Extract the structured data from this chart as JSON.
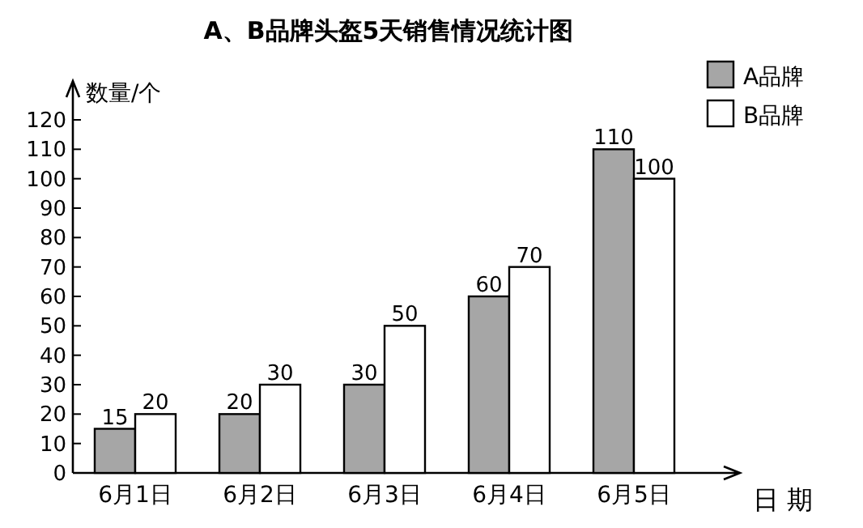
{
  "chart_data": {
    "type": "bar",
    "title": "A、B品牌头盔5天销售情况统计图",
    "xlabel": "日 期",
    "ylabel": "数量/个",
    "categories": [
      "6月1日",
      "6月2日",
      "6月3日",
      "6月4日",
      "6月5日"
    ],
    "series": [
      {
        "name": "A品牌",
        "color": "#a6a6a6",
        "values": [
          15,
          20,
          30,
          60,
          110
        ]
      },
      {
        "name": "B品牌",
        "color": "#ffffff",
        "values": [
          20,
          30,
          50,
          70,
          100
        ]
      }
    ],
    "ylim": [
      0,
      120
    ],
    "yticks": [
      0,
      10,
      20,
      30,
      40,
      50,
      60,
      70,
      80,
      90,
      100,
      110,
      120
    ],
    "data_labels": true,
    "legend": "top right"
  }
}
